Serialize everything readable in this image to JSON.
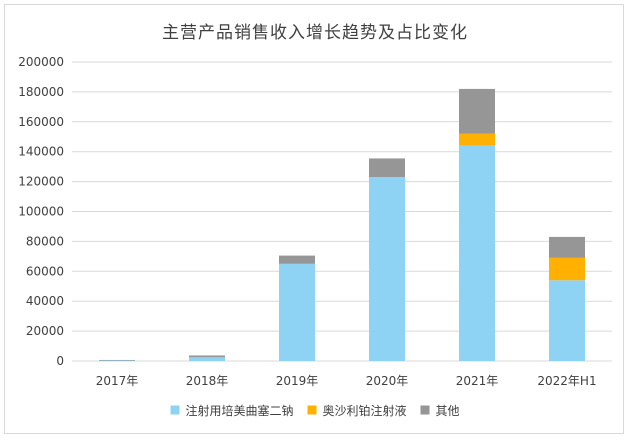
{
  "chart_data": {
    "type": "bar",
    "stacked": true,
    "title": "主营产品销售收入增长趋势及占比变化",
    "categories": [
      "2017年",
      "2018年",
      "2019年",
      "2020年",
      "2021年",
      "2022年H1"
    ],
    "series": [
      {
        "name": "注射用培美曲塞二钠",
        "color": "#8FD3F4",
        "values": [
          300,
          2500,
          65000,
          123000,
          144000,
          54000
        ]
      },
      {
        "name": "奥沙利铂注射液",
        "color": "#FFB000",
        "values": [
          0,
          0,
          0,
          0,
          8000,
          15000
        ]
      },
      {
        "name": "其他",
        "color": "#969696",
        "values": [
          400,
          1200,
          5500,
          12500,
          30000,
          14000
        ]
      }
    ],
    "ylim": [
      0,
      200000
    ],
    "yticks": [
      "0",
      "20000",
      "40000",
      "60000",
      "80000",
      "100000",
      "120000",
      "140000",
      "160000",
      "180000",
      "200000"
    ],
    "grid": true,
    "legend_position": "bottom"
  }
}
